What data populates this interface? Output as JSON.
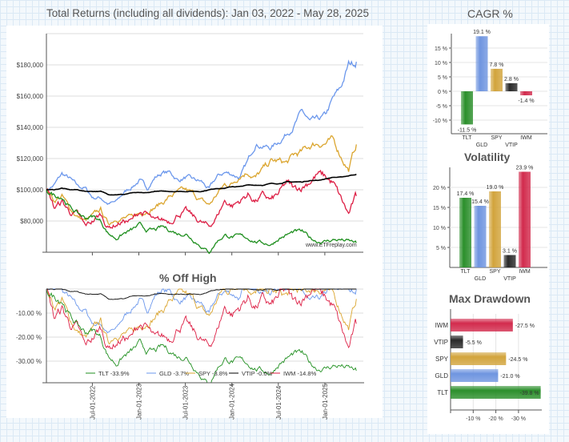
{
  "colors": {
    "TLT": "#1f8f1f",
    "GLD": "#6b97ec",
    "SPY": "#dba52e",
    "VTIP": "#000000",
    "IWM": "#dd1e44"
  },
  "chart_data": [
    {
      "type": "line",
      "title": "Total Returns (including all dividends): Jan 03, 2022 - May 28, 2025",
      "x": [
        "2022-01",
        "2022-02",
        "2022-03",
        "2022-04",
        "2022-05",
        "2022-06",
        "2022-07",
        "2022-08",
        "2022-09",
        "2022-10",
        "2022-11",
        "2022-12",
        "2023-01",
        "2023-02",
        "2023-03",
        "2023-04",
        "2023-05",
        "2023-06",
        "2023-07",
        "2023-08",
        "2023-09",
        "2023-10",
        "2023-11",
        "2023-12",
        "2024-01",
        "2024-02",
        "2024-03",
        "2024-04",
        "2024-05",
        "2024-06",
        "2024-07",
        "2024-08",
        "2024-09",
        "2024-10",
        "2024-11",
        "2024-12",
        "2025-01",
        "2025-02",
        "2025-03",
        "2025-04",
        "2025-05"
      ],
      "ylim": [
        60000,
        200000
      ],
      "yticks": [
        "$80,000",
        "$100,000",
        "$120,000",
        "$140,000",
        "$160,000",
        "$180,000"
      ],
      "xticks": [
        "Jul-01-2022",
        "Jan-01-2023",
        "Jul-01-2023",
        "Jan-01-2024",
        "Jul-01-2024",
        "Jan-01-2025"
      ],
      "watermark": "www.ETFreplay.com",
      "series": [
        {
          "name": "GLD",
          "values": [
            100000,
            103000,
            110000,
            107000,
            102000,
            101000,
            95000,
            95000,
            91000,
            92000,
            98000,
            102000,
            106000,
            101000,
            108000,
            111000,
            111000,
            106000,
            108000,
            106000,
            105000,
            100000,
            108000,
            111000,
            110000,
            108000,
            118000,
            130000,
            128000,
            127000,
            131000,
            136000,
            142000,
            150000,
            143000,
            144000,
            147000,
            158000,
            165000,
            180000,
            182000
          ]
        },
        {
          "name": "SPY",
          "values": [
            100000,
            93000,
            96000,
            88000,
            83000,
            80000,
            83000,
            87000,
            78000,
            82000,
            82000,
            82000,
            85000,
            87000,
            89000,
            92000,
            96000,
            98000,
            99000,
            97000,
            93000,
            90000,
            97000,
            103000,
            104000,
            110000,
            112000,
            108000,
            113000,
            118000,
            118000,
            117000,
            122000,
            124000,
            128000,
            130000,
            130000,
            131000,
            122000,
            113000,
            129000
          ]
        },
        {
          "name": "VTIP",
          "values": [
            100000,
            100000,
            101000,
            100000,
            100000,
            99000,
            99000,
            99000,
            97000,
            97000,
            97000,
            98000,
            98000,
            98000,
            99000,
            99000,
            99000,
            99000,
            99000,
            99000,
            99000,
            100000,
            101000,
            101000,
            102000,
            102000,
            103000,
            103000,
            103000,
            104000,
            104000,
            105000,
            105000,
            105000,
            106000,
            106000,
            107000,
            108000,
            108000,
            109000,
            110000
          ]
        },
        {
          "name": "IWM",
          "values": [
            100000,
            88000,
            92000,
            86000,
            84000,
            76000,
            80000,
            84000,
            76000,
            78000,
            80000,
            80000,
            86000,
            84000,
            79000,
            80000,
            80000,
            85000,
            86000,
            82000,
            79000,
            76000,
            83000,
            93000,
            90000,
            93000,
            97000,
            93000,
            96000,
            93000,
            97000,
            104000,
            100000,
            102000,
            106000,
            110000,
            108000,
            104000,
            94000,
            84000,
            96000
          ]
        },
        {
          "name": "TLT",
          "values": [
            100000,
            97000,
            96000,
            89000,
            85000,
            82000,
            83000,
            80000,
            72000,
            69000,
            72000,
            74000,
            77000,
            74000,
            74000,
            76000,
            74000,
            72000,
            72000,
            68000,
            64000,
            60000,
            67000,
            71000,
            70000,
            70000,
            69000,
            67000,
            66000,
            65000,
            69000,
            71000,
            73000,
            73000,
            69000,
            67000,
            67000,
            68000,
            68000,
            67000,
            66000
          ]
        }
      ]
    },
    {
      "type": "line",
      "title": "% Off High",
      "yticks": [
        "-10.00 %",
        "-20.00 %",
        "-30.00 %"
      ],
      "ylim": [
        -39,
        0
      ],
      "legend": [
        "TLT -33.9%",
        "GLD -3.7%",
        "SPY -3.8%",
        "VTIP -0.6%",
        "IWM -14.8%"
      ],
      "legend_position": "bottom"
    },
    {
      "type": "bar",
      "title": "CAGR %",
      "categories": [
        "TLT",
        "GLD",
        "SPY",
        "VTIP",
        "IWM"
      ],
      "values": [
        -11.5,
        19.1,
        7.8,
        2.8,
        -1.4
      ],
      "labels": [
        "-11.5 %",
        "19.1 %",
        "7.8 %",
        "2.8 %",
        "-1.4 %"
      ],
      "yticks": [
        "15 %",
        "10 %",
        "5 %",
        "0 %",
        "-5 %",
        "-10 %"
      ]
    },
    {
      "type": "bar",
      "title": "Volatility",
      "categories": [
        "TLT",
        "GLD",
        "SPY",
        "VTIP",
        "IWM"
      ],
      "values": [
        17.4,
        15.4,
        19.0,
        3.1,
        23.9
      ],
      "labels": [
        "17.4 %",
        "15.4 %",
        "19.0 %",
        "3.1 %",
        "23.9 %"
      ],
      "yticks": [
        "20 %",
        "15 %",
        "10 %",
        "5 %"
      ]
    },
    {
      "type": "bar",
      "orientation": "horizontal",
      "title": "Max Drawdown",
      "categories": [
        "IWM",
        "VTIP",
        "SPY",
        "GLD",
        "TLT"
      ],
      "values": [
        -27.5,
        -5.5,
        -24.5,
        -21.0,
        -39.8
      ],
      "labels": [
        "-27.5 %",
        "-5.5 %",
        "-24.5 %",
        "-21.0 %",
        "-39.8 %"
      ],
      "xticks": [
        "-10 %",
        "-20 %",
        "-30 %"
      ]
    }
  ]
}
